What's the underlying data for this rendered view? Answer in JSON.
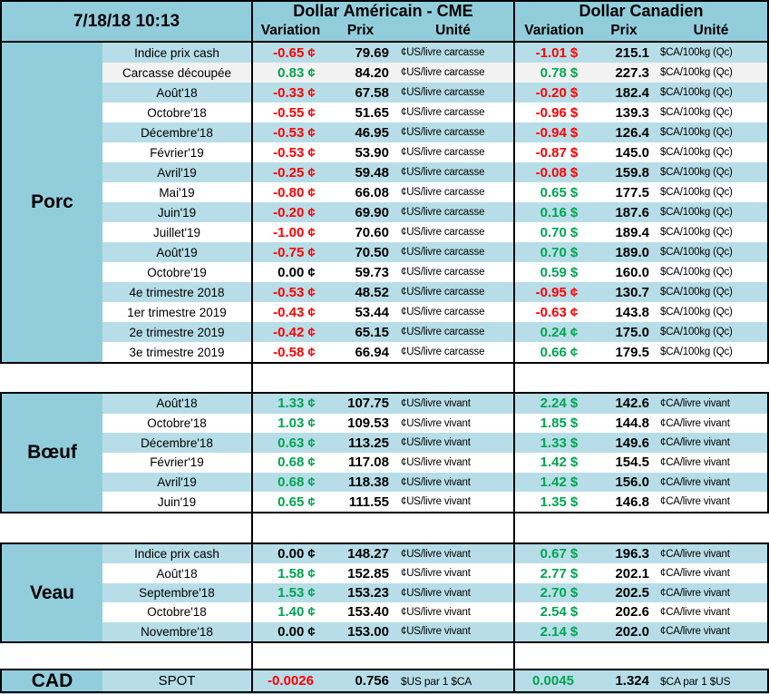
{
  "timestamp": "7/18/18 10:13",
  "header": {
    "us_title": "Dollar Américain - CME",
    "ca_title": "Dollar Canadien",
    "col_variation": "Variation",
    "col_prix": "Prix",
    "col_unite": "Unité"
  },
  "palette": {
    "header_teal": "#92CDDC",
    "stripe_blue": "#B7DEE8",
    "stripe_gray": "#F2F2F2",
    "negative_red": "#FF0000",
    "positive_green": "#00A550",
    "border_black": "#000000"
  },
  "sections": [
    {
      "name": "Porc",
      "rows": [
        {
          "label": "Indice prix cash",
          "us_var": "-0.65",
          "us_sym": "¢",
          "us_prix": "79.69",
          "us_unit": "¢US/livre carcasse",
          "ca_var": "-1.01",
          "ca_sym": "$",
          "ca_prix": "215.1",
          "ca_unit": "$CA/100kg (Qc)",
          "shade": "blue"
        },
        {
          "label": "Carcasse découpée",
          "us_var": "0.83",
          "us_sym": "¢",
          "us_prix": "84.20",
          "us_unit": "¢US/livre carcasse",
          "ca_var": "0.78",
          "ca_sym": "$",
          "ca_prix": "227.3",
          "ca_unit": "$CA/100kg (Qc)",
          "shade": "gray"
        },
        {
          "label": "Août'18",
          "us_var": "-0.33",
          "us_sym": "¢",
          "us_prix": "67.58",
          "us_unit": "¢US/livre carcasse",
          "ca_var": "-0.20",
          "ca_sym": "$",
          "ca_prix": "182.4",
          "ca_unit": "$CA/100kg (Qc)",
          "shade": "blue"
        },
        {
          "label": "Octobre'18",
          "us_var": "-0.55",
          "us_sym": "¢",
          "us_prix": "51.65",
          "us_unit": "¢US/livre carcasse",
          "ca_var": "-0.96",
          "ca_sym": "$",
          "ca_prix": "139.3",
          "ca_unit": "$CA/100kg (Qc)",
          "shade": "white"
        },
        {
          "label": "Décembre'18",
          "us_var": "-0.53",
          "us_sym": "¢",
          "us_prix": "46.95",
          "us_unit": "¢US/livre carcasse",
          "ca_var": "-0.94",
          "ca_sym": "$",
          "ca_prix": "126.4",
          "ca_unit": "$CA/100kg (Qc)",
          "shade": "blue"
        },
        {
          "label": "Février'19",
          "us_var": "-0.53",
          "us_sym": "¢",
          "us_prix": "53.90",
          "us_unit": "¢US/livre carcasse",
          "ca_var": "-0.87",
          "ca_sym": "$",
          "ca_prix": "145.0",
          "ca_unit": "$CA/100kg (Qc)",
          "shade": "white"
        },
        {
          "label": "Avril'19",
          "us_var": "-0.25",
          "us_sym": "¢",
          "us_prix": "59.48",
          "us_unit": "¢US/livre carcasse",
          "ca_var": "-0.08",
          "ca_sym": "$",
          "ca_prix": "159.8",
          "ca_unit": "$CA/100kg (Qc)",
          "shade": "blue"
        },
        {
          "label": "Mai'19",
          "us_var": "-0.80",
          "us_sym": "¢",
          "us_prix": "66.08",
          "us_unit": "¢US/livre carcasse",
          "ca_var": "0.65",
          "ca_sym": "$",
          "ca_prix": "177.5",
          "ca_unit": "$CA/100kg (Qc)",
          "shade": "white"
        },
        {
          "label": "Juin'19",
          "us_var": "-0.20",
          "us_sym": "¢",
          "us_prix": "69.90",
          "us_unit": "¢US/livre carcasse",
          "ca_var": "0.16",
          "ca_sym": "$",
          "ca_prix": "187.6",
          "ca_unit": "$CA/100kg (Qc)",
          "shade": "blue"
        },
        {
          "label": "Juillet'19",
          "us_var": "-1.00",
          "us_sym": "¢",
          "us_prix": "70.60",
          "us_unit": "¢US/livre carcasse",
          "ca_var": "0.70",
          "ca_sym": "$",
          "ca_prix": "189.4",
          "ca_unit": "$CA/100kg (Qc)",
          "shade": "white"
        },
        {
          "label": "Août'19",
          "us_var": "-0.75",
          "us_sym": "¢",
          "us_prix": "70.50",
          "us_unit": "¢US/livre carcasse",
          "ca_var": "0.70",
          "ca_sym": "$",
          "ca_prix": "189.0",
          "ca_unit": "$CA/100kg (Qc)",
          "shade": "blue"
        },
        {
          "label": "Octobre'19",
          "us_var": "0.00",
          "us_sym": "¢",
          "us_prix": "59.73",
          "us_unit": "¢US/livre carcasse",
          "ca_var": "0.59",
          "ca_sym": "$",
          "ca_prix": "160.0",
          "ca_unit": "$CA/100kg (Qc)",
          "shade": "white"
        },
        {
          "label": "4e trimestre 2018",
          "us_var": "-0.53",
          "us_sym": "¢",
          "us_prix": "48.52",
          "us_unit": "¢US/livre carcasse",
          "ca_var": "-0.95",
          "ca_sym": "¢",
          "ca_prix": "130.7",
          "ca_unit": "$CA/100kg (Qc)",
          "shade": "blue"
        },
        {
          "label": "1er trimestre 2019",
          "us_var": "-0.43",
          "us_sym": "¢",
          "us_prix": "53.44",
          "us_unit": "¢US/livre carcasse",
          "ca_var": "-0.63",
          "ca_sym": "¢",
          "ca_prix": "143.8",
          "ca_unit": "$CA/100kg (Qc)",
          "shade": "white"
        },
        {
          "label": "2e trimestre 2019",
          "us_var": "-0.42",
          "us_sym": "¢",
          "us_prix": "65.15",
          "us_unit": "¢US/livre carcasse",
          "ca_var": "0.24",
          "ca_sym": "¢",
          "ca_prix": "175.0",
          "ca_unit": "$CA/100kg (Qc)",
          "shade": "blue"
        },
        {
          "label": "3e trimestre 2019",
          "us_var": "-0.58",
          "us_sym": "¢",
          "us_prix": "66.94",
          "us_unit": "¢US/livre carcasse",
          "ca_var": "0.66",
          "ca_sym": "¢",
          "ca_prix": "179.5",
          "ca_unit": "$CA/100kg (Qc)",
          "shade": "white"
        }
      ]
    },
    {
      "name": "Bœuf",
      "rows": [
        {
          "label": "Août'18",
          "us_var": "1.33",
          "us_sym": "¢",
          "us_prix": "107.75",
          "us_unit": "¢US/livre vivant",
          "ca_var": "2.24",
          "ca_sym": "$",
          "ca_prix": "142.6",
          "ca_unit": "¢CA/livre vivant",
          "shade": "blue"
        },
        {
          "label": "Octobre'18",
          "us_var": "1.03",
          "us_sym": "¢",
          "us_prix": "109.53",
          "us_unit": "¢US/livre vivant",
          "ca_var": "1.85",
          "ca_sym": "$",
          "ca_prix": "144.8",
          "ca_unit": "¢CA/livre vivant",
          "shade": "white"
        },
        {
          "label": "Décembre'18",
          "us_var": "0.63",
          "us_sym": "¢",
          "us_prix": "113.25",
          "us_unit": "¢US/livre vivant",
          "ca_var": "1.33",
          "ca_sym": "$",
          "ca_prix": "149.6",
          "ca_unit": "¢CA/livre vivant",
          "shade": "blue"
        },
        {
          "label": "Février'19",
          "us_var": "0.68",
          "us_sym": "¢",
          "us_prix": "117.08",
          "us_unit": "¢US/livre vivant",
          "ca_var": "1.42",
          "ca_sym": "$",
          "ca_prix": "154.5",
          "ca_unit": "¢CA/livre vivant",
          "shade": "white"
        },
        {
          "label": "Avril'19",
          "us_var": "0.68",
          "us_sym": "¢",
          "us_prix": "118.38",
          "us_unit": "¢US/livre vivant",
          "ca_var": "1.42",
          "ca_sym": "$",
          "ca_prix": "156.0",
          "ca_unit": "¢CA/livre vivant",
          "shade": "blue"
        },
        {
          "label": "Juin'19",
          "us_var": "0.65",
          "us_sym": "¢",
          "us_prix": "111.55",
          "us_unit": "¢US/livre vivant",
          "ca_var": "1.35",
          "ca_sym": "$",
          "ca_prix": "146.8",
          "ca_unit": "¢CA/livre vivant",
          "shade": "white"
        }
      ]
    },
    {
      "name": "Veau",
      "rows": [
        {
          "label": "Indice prix cash",
          "us_var": "0.00",
          "us_sym": "¢",
          "us_prix": "148.27",
          "us_unit": "¢US/livre vivant",
          "ca_var": "0.67",
          "ca_sym": "$",
          "ca_prix": "196.3",
          "ca_unit": "¢CA/livre vivant",
          "shade": "blue"
        },
        {
          "label": "Août'18",
          "us_var": "1.58",
          "us_sym": "¢",
          "us_prix": "152.85",
          "us_unit": "¢US/livre vivant",
          "ca_var": "2.77",
          "ca_sym": "$",
          "ca_prix": "202.1",
          "ca_unit": "¢CA/livre vivant",
          "shade": "white"
        },
        {
          "label": "Septembre'18",
          "us_var": "1.53",
          "us_sym": "¢",
          "us_prix": "153.23",
          "us_unit": "¢US/livre vivant",
          "ca_var": "2.70",
          "ca_sym": "$",
          "ca_prix": "202.5",
          "ca_unit": "¢CA/livre vivant",
          "shade": "blue"
        },
        {
          "label": "Octobre'18",
          "us_var": "1.40",
          "us_sym": "¢",
          "us_prix": "153.40",
          "us_unit": "¢US/livre vivant",
          "ca_var": "2.54",
          "ca_sym": "$",
          "ca_prix": "202.6",
          "ca_unit": "¢CA/livre vivant",
          "shade": "white"
        },
        {
          "label": "Novembre'18",
          "us_var": "0.00",
          "us_sym": "¢",
          "us_prix": "153.00",
          "us_unit": "¢US/livre vivant",
          "ca_var": "2.14",
          "ca_sym": "$",
          "ca_prix": "202.0",
          "ca_unit": "¢CA/livre vivant",
          "shade": "blue"
        }
      ]
    },
    {
      "name": "CAD",
      "rows": [
        {
          "label": "SPOT",
          "us_var": "-0.0026",
          "us_sym": "",
          "us_prix": "0.756",
          "us_unit": "$US par 1 $CA",
          "ca_var": "0.0045",
          "ca_sym": "",
          "ca_prix": "1.324",
          "ca_unit": "$CA par 1 $US",
          "shade": "blue"
        }
      ]
    }
  ]
}
